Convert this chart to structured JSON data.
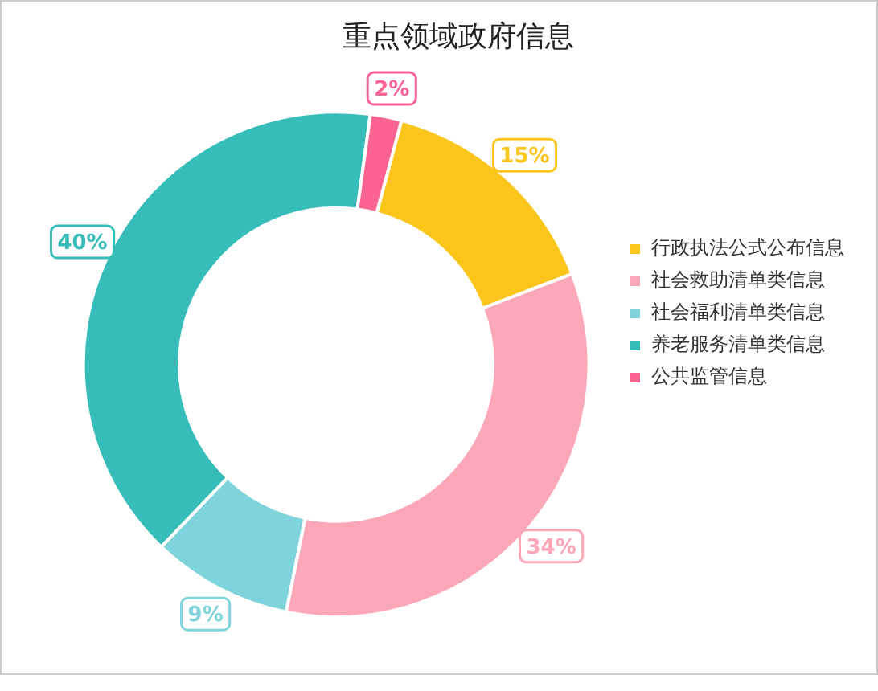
{
  "chart_data": {
    "type": "donut",
    "title": "重点领域政府信息",
    "categories": [
      "行政执法公式公布信息",
      "社会救助清单类信息",
      "社会福利清单类信息",
      "养老服务清单类信息",
      "公共监管信息"
    ],
    "values": [
      15,
      34,
      9,
      40,
      2
    ],
    "colors": [
      "#fcc51b",
      "#fca7b8",
      "#7fd3db",
      "#36bdb9",
      "#fb6391"
    ],
    "value_labels": [
      "15%",
      "34%",
      "9%",
      "40%",
      "2%"
    ],
    "legend": "right"
  }
}
